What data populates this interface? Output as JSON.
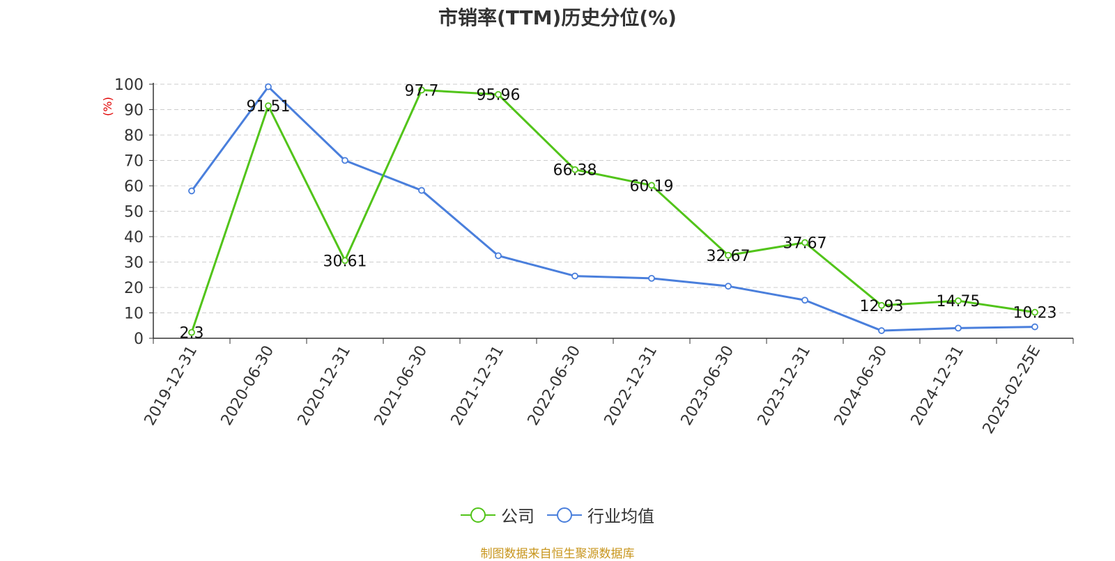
{
  "chart_data": {
    "type": "line",
    "title": "市销率(TTM)历史分位(%)",
    "ylabel": "(%)",
    "ylim": [
      0,
      100
    ],
    "yticks": [
      0,
      10,
      20,
      30,
      40,
      50,
      60,
      70,
      80,
      90,
      100
    ],
    "categories": [
      "2019-12-31",
      "2020-06-30",
      "2020-12-31",
      "2021-06-30",
      "2021-12-31",
      "2022-06-30",
      "2022-12-31",
      "2023-06-30",
      "2023-12-31",
      "2024-06-30",
      "2024-12-31",
      "2025-02-25E"
    ],
    "series": [
      {
        "name": "公司",
        "color": "#52c41a",
        "values": [
          2.3,
          91.51,
          30.61,
          97.7,
          95.96,
          66.38,
          60.19,
          32.67,
          37.67,
          12.93,
          14.75,
          10.23
        ],
        "labels": [
          "2.3",
          "91.51",
          "30.61",
          "97.7",
          "95.96",
          "66.38",
          "60.19",
          "32.67",
          "37.67",
          "12.93",
          "14.75",
          "10.23"
        ]
      },
      {
        "name": "行业均值",
        "color": "#4a7fdc",
        "values": [
          58,
          99,
          70,
          58.2,
          32.5,
          24.5,
          23.6,
          20.5,
          15,
          3,
          4,
          4.5
        ]
      }
    ],
    "grid": true,
    "legend_position": "bottom"
  },
  "footer": {
    "source": "制图数据来自恒生聚源数据库"
  }
}
